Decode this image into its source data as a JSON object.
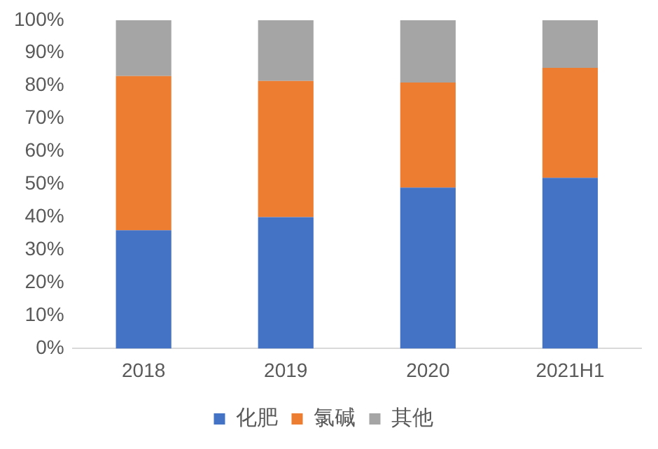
{
  "chart_data": {
    "type": "bar",
    "stacked": true,
    "categories": [
      "2018",
      "2019",
      "2020",
      "2021H1"
    ],
    "series": [
      {
        "name": "化肥",
        "color": "#4472c4",
        "values": [
          36,
          40,
          49,
          52
        ]
      },
      {
        "name": "氯碱",
        "color": "#ed7d31",
        "values": [
          47,
          41.5,
          32,
          33.5
        ]
      },
      {
        "name": "其他",
        "color": "#a5a5a5",
        "values": [
          17,
          18.5,
          19,
          14.5
        ]
      }
    ],
    "ylim": [
      0,
      100
    ],
    "yticks": [
      {
        "value": 0,
        "label": "0%"
      },
      {
        "value": 10,
        "label": "10%"
      },
      {
        "value": 20,
        "label": "20%"
      },
      {
        "value": 30,
        "label": "30%"
      },
      {
        "value": 40,
        "label": "40%"
      },
      {
        "value": 50,
        "label": "50%"
      },
      {
        "value": 60,
        "label": "60%"
      },
      {
        "value": 70,
        "label": "70%"
      },
      {
        "value": 80,
        "label": "80%"
      },
      {
        "value": 90,
        "label": "90%"
      },
      {
        "value": 100,
        "label": "100%"
      }
    ],
    "grid": false,
    "legend": "bottom"
  }
}
